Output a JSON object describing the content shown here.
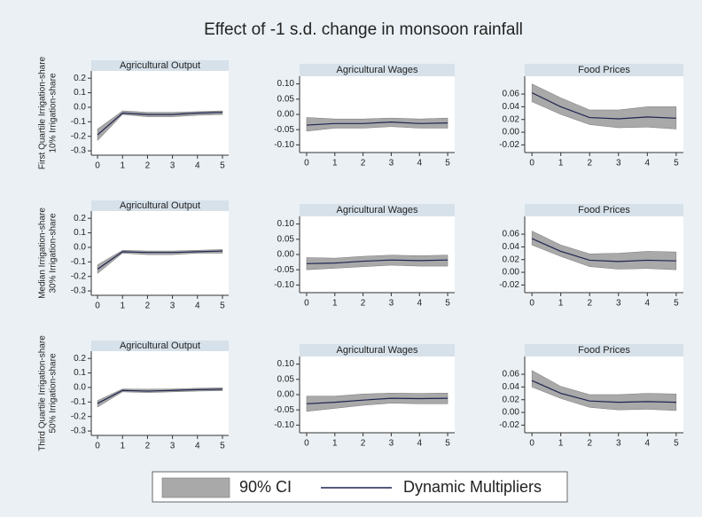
{
  "title": "Effect of -1 s.d. change in monsoon rainfall",
  "row_labels": [
    [
      "First Quartile Irrigation-share",
      "10% Irrigation-share"
    ],
    [
      "Median Irrigation-share",
      "30% Irrigation-share"
    ],
    [
      "Third Quartile Irrigation-share",
      "50% Irrigation-share"
    ]
  ],
  "legend": {
    "ci": {
      "label": "90% CI",
      "color": "#a9a9a9"
    },
    "line": {
      "label": "Dynamic Multipliers",
      "color": "#1f2451"
    }
  },
  "chart_data": [
    {
      "type": "line",
      "title": "Agricultural Output",
      "x": [
        0,
        1,
        2,
        3,
        4,
        5
      ],
      "values": [
        -0.19,
        -0.04,
        -0.05,
        -0.05,
        -0.04,
        -0.035
      ],
      "ci_lower": [
        -0.23,
        -0.05,
        -0.065,
        -0.065,
        -0.055,
        -0.05
      ],
      "ci_upper": [
        -0.15,
        -0.025,
        -0.035,
        -0.035,
        -0.03,
        -0.025
      ],
      "xlim": [
        -0.25,
        5.25
      ],
      "xticks": [
        0,
        1,
        2,
        3,
        4,
        5
      ],
      "ylim": [
        -0.33,
        0.25
      ],
      "yticks": [
        0.2,
        0.1,
        {
          "value": 0,
          "label": "0.0"
        },
        -0.1,
        -0.2,
        -0.3
      ],
      "grid": false
    },
    {
      "type": "line",
      "title": "Agricultural Wages",
      "x": [
        0,
        1,
        2,
        3,
        4,
        5
      ],
      "values": [
        -0.035,
        -0.03,
        -0.03,
        -0.025,
        -0.03,
        -0.028
      ],
      "ci_lower": [
        -0.055,
        -0.045,
        -0.045,
        -0.04,
        -0.045,
        -0.045
      ],
      "ci_upper": [
        -0.01,
        -0.015,
        -0.015,
        -0.012,
        -0.015,
        -0.012
      ],
      "xlim": [
        -0.25,
        5.25
      ],
      "xticks": [
        0,
        1,
        2,
        3,
        4,
        5
      ],
      "ylim": [
        -0.125,
        0.125
      ],
      "yticks": [
        {
          "value": 0.1,
          "label": "0.10"
        },
        {
          "value": 0.05,
          "label": "0.05"
        },
        {
          "value": 0,
          "label": "0.00"
        },
        {
          "value": -0.05,
          "label": "-0.05"
        },
        {
          "value": -0.1,
          "label": "-0.10"
        }
      ],
      "grid": false
    },
    {
      "type": "line",
      "title": "Food Prices",
      "x": [
        0,
        1,
        2,
        3,
        4,
        5
      ],
      "values": [
        0.062,
        0.04,
        0.023,
        0.021,
        0.024,
        0.022
      ],
      "ci_lower": [
        0.048,
        0.028,
        0.012,
        0.007,
        0.008,
        0.005
      ],
      "ci_upper": [
        0.076,
        0.054,
        0.035,
        0.035,
        0.04,
        0.04
      ],
      "xlim": [
        -0.25,
        5.25
      ],
      "xticks": [
        0,
        1,
        2,
        3,
        4,
        5
      ],
      "ylim": [
        -0.032,
        0.088
      ],
      "yticks": [
        0.06,
        0.04,
        0.02,
        {
          "value": 0,
          "label": "0.00"
        },
        -0.02
      ],
      "grid": false
    },
    {
      "type": "line",
      "title": "Agricultural Output",
      "x": [
        0,
        1,
        2,
        3,
        4,
        5
      ],
      "values": [
        -0.15,
        -0.03,
        -0.035,
        -0.035,
        -0.03,
        -0.025
      ],
      "ci_lower": [
        -0.18,
        -0.04,
        -0.05,
        -0.05,
        -0.04,
        -0.04
      ],
      "ci_upper": [
        -0.12,
        -0.02,
        -0.025,
        -0.025,
        -0.02,
        -0.015
      ],
      "xlim": [
        -0.25,
        5.25
      ],
      "xticks": [
        0,
        1,
        2,
        3,
        4,
        5
      ],
      "ylim": [
        -0.33,
        0.25
      ],
      "yticks": [
        0.2,
        0.1,
        {
          "value": 0,
          "label": "0.0"
        },
        -0.1,
        -0.2,
        -0.3
      ],
      "grid": false
    },
    {
      "type": "line",
      "title": "Agricultural Wages",
      "x": [
        0,
        1,
        2,
        3,
        4,
        5
      ],
      "values": [
        -0.03,
        -0.028,
        -0.022,
        -0.018,
        -0.02,
        -0.018
      ],
      "ci_lower": [
        -0.05,
        -0.045,
        -0.04,
        -0.035,
        -0.038,
        -0.038
      ],
      "ci_upper": [
        -0.01,
        -0.012,
        -0.006,
        -0.002,
        -0.004,
        -0.002
      ],
      "xlim": [
        -0.25,
        5.25
      ],
      "xticks": [
        0,
        1,
        2,
        3,
        4,
        5
      ],
      "ylim": [
        -0.125,
        0.125
      ],
      "yticks": [
        {
          "value": 0.1,
          "label": "0.10"
        },
        {
          "value": 0.05,
          "label": "0.05"
        },
        {
          "value": 0,
          "label": "0.00"
        },
        {
          "value": -0.05,
          "label": "-0.05"
        },
        {
          "value": -0.1,
          "label": "-0.10"
        }
      ],
      "grid": false
    },
    {
      "type": "line",
      "title": "Food Prices",
      "x": [
        0,
        1,
        2,
        3,
        4,
        5
      ],
      "values": [
        0.053,
        0.033,
        0.019,
        0.017,
        0.019,
        0.018
      ],
      "ci_lower": [
        0.043,
        0.025,
        0.009,
        0.005,
        0.006,
        0.004
      ],
      "ci_upper": [
        0.065,
        0.043,
        0.029,
        0.03,
        0.033,
        0.032
      ],
      "xlim": [
        -0.25,
        5.25
      ],
      "xticks": [
        0,
        1,
        2,
        3,
        4,
        5
      ],
      "ylim": [
        -0.032,
        0.088
      ],
      "yticks": [
        0.06,
        0.04,
        0.02,
        {
          "value": 0,
          "label": "0.00"
        },
        -0.02
      ],
      "grid": false
    },
    {
      "type": "line",
      "title": "Agricultural Output",
      "x": [
        0,
        1,
        2,
        3,
        4,
        5
      ],
      "values": [
        -0.11,
        -0.02,
        -0.025,
        -0.02,
        -0.015,
        -0.012
      ],
      "ci_lower": [
        -0.135,
        -0.03,
        -0.035,
        -0.03,
        -0.025,
        -0.022
      ],
      "ci_upper": [
        -0.09,
        -0.01,
        -0.012,
        -0.01,
        -0.005,
        -0.002
      ],
      "xlim": [
        -0.25,
        5.25
      ],
      "xticks": [
        0,
        1,
        2,
        3,
        4,
        5
      ],
      "ylim": [
        -0.33,
        0.25
      ],
      "yticks": [
        0.2,
        0.1,
        {
          "value": 0,
          "label": "0.0"
        },
        -0.1,
        -0.2,
        -0.3
      ],
      "grid": false
    },
    {
      "type": "line",
      "title": "Agricultural Wages",
      "x": [
        0,
        1,
        2,
        3,
        4,
        5
      ],
      "values": [
        -0.03,
        -0.025,
        -0.018,
        -0.012,
        -0.013,
        -0.012
      ],
      "ci_lower": [
        -0.055,
        -0.045,
        -0.035,
        -0.028,
        -0.03,
        -0.03
      ],
      "ci_upper": [
        -0.005,
        -0.005,
        0.002,
        0.005,
        0.004,
        0.005
      ],
      "xlim": [
        -0.25,
        5.25
      ],
      "xticks": [
        0,
        1,
        2,
        3,
        4,
        5
      ],
      "ylim": [
        -0.125,
        0.125
      ],
      "yticks": [
        {
          "value": 0.1,
          "label": "0.10"
        },
        {
          "value": 0.05,
          "label": "0.05"
        },
        {
          "value": 0,
          "label": "0.00"
        },
        {
          "value": -0.05,
          "label": "-0.05"
        },
        {
          "value": -0.1,
          "label": "-0.10"
        }
      ],
      "grid": false
    },
    {
      "type": "line",
      "title": "Food Prices",
      "x": [
        0,
        1,
        2,
        3,
        4,
        5
      ],
      "values": [
        0.05,
        0.03,
        0.018,
        0.016,
        0.017,
        0.016
      ],
      "ci_lower": [
        0.04,
        0.022,
        0.008,
        0.004,
        0.005,
        0.003
      ],
      "ci_upper": [
        0.066,
        0.041,
        0.028,
        0.028,
        0.03,
        0.029
      ],
      "xlim": [
        -0.25,
        5.25
      ],
      "xticks": [
        0,
        1,
        2,
        3,
        4,
        5
      ],
      "ylim": [
        -0.032,
        0.088
      ],
      "yticks": [
        0.06,
        0.04,
        0.02,
        {
          "value": 0,
          "label": "0.00"
        },
        -0.02
      ],
      "grid": false
    }
  ]
}
